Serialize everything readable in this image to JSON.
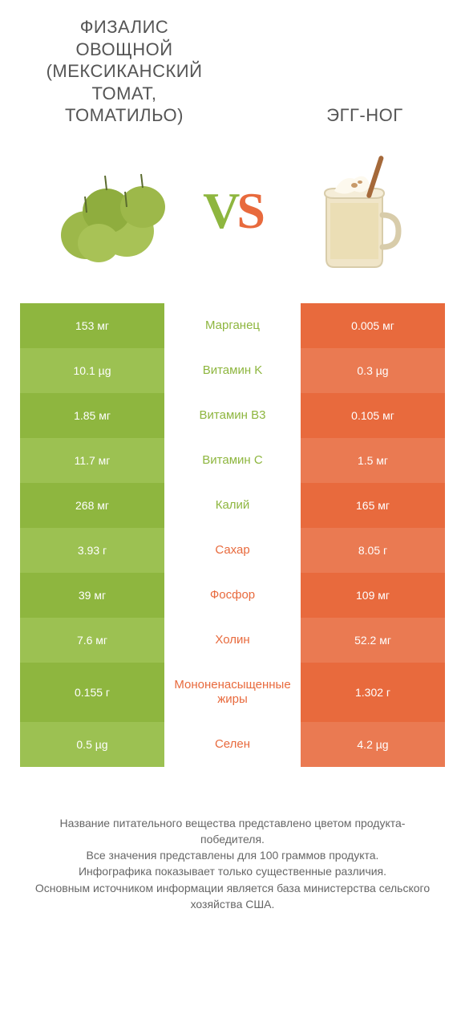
{
  "colors": {
    "left_primary": "#8eb63f",
    "left_alt": "#9cc152",
    "right_primary": "#e86a3d",
    "right_alt": "#ea7a52",
    "text": "#555555",
    "footer_text": "#666666",
    "white": "#ffffff"
  },
  "header": {
    "left_title": "ФИЗАЛИС ОВОЩНОЙ (МЕКСИКАНСКИЙ ТОМАТ, ТОМАТИЛЬО)",
    "right_title": "ЭГГ-НОГ",
    "vs_v": "V",
    "vs_s": "S"
  },
  "rows": [
    {
      "label": "Марганец",
      "left": "153 мг",
      "right": "0.005 мг",
      "winner": "left"
    },
    {
      "label": "Витамин K",
      "left": "10.1 µg",
      "right": "0.3 µg",
      "winner": "left"
    },
    {
      "label": "Витамин B3",
      "left": "1.85 мг",
      "right": "0.105 мг",
      "winner": "left"
    },
    {
      "label": "Витамин C",
      "left": "11.7 мг",
      "right": "1.5 мг",
      "winner": "left"
    },
    {
      "label": "Калий",
      "left": "268 мг",
      "right": "165 мг",
      "winner": "left"
    },
    {
      "label": "Сахар",
      "left": "3.93 г",
      "right": "8.05 г",
      "winner": "right"
    },
    {
      "label": "Фосфор",
      "left": "39 мг",
      "right": "109 мг",
      "winner": "right"
    },
    {
      "label": "Холин",
      "left": "7.6 мг",
      "right": "52.2 мг",
      "winner": "right"
    },
    {
      "label": "Мононенасыщенные жиры",
      "left": "0.155 г",
      "right": "1.302 г",
      "winner": "right"
    },
    {
      "label": "Селен",
      "left": "0.5 µg",
      "right": "4.2 µg",
      "winner": "right"
    }
  ],
  "footer": {
    "line1": "Название питательного вещества представлено цветом продукта-победителя.",
    "line2": "Все значения представлены для 100 граммов продукта.",
    "line3": "Инфографика показывает только существенные различия.",
    "line4": "Основным источником информации является база министерства сельского хозяйства США."
  }
}
